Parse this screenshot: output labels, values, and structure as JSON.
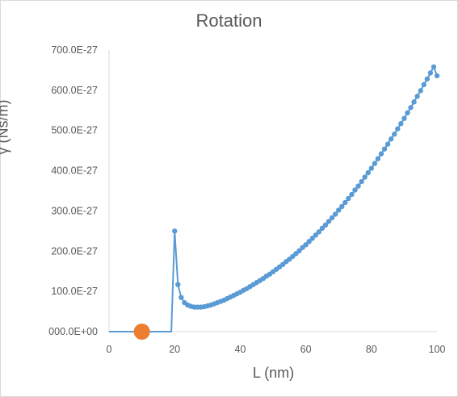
{
  "chart_data": {
    "type": "scatter",
    "title": "Rotation",
    "xlabel": "L (nm)",
    "ylabel": "γ (Ns/m)",
    "xlim": [
      0,
      100
    ],
    "ylim": [
      0,
      7e-25
    ],
    "x_ticks": [
      "0",
      "20",
      "40",
      "60",
      "80",
      "100"
    ],
    "y_ticks": [
      "000.0E+00",
      "100.0E-27",
      "200.0E-27",
      "300.0E-27",
      "400.0E-27",
      "500.0E-27",
      "600.0E-27",
      "700.0E-27"
    ],
    "grid": false,
    "legend": "none",
    "series": [
      {
        "color": "#5b9bd5",
        "marker": "circle",
        "line": true,
        "x": [
          0,
          1,
          2,
          3,
          4,
          5,
          6,
          7,
          8,
          9,
          10,
          11,
          12,
          13,
          14,
          15,
          16,
          17,
          18,
          19,
          20,
          21,
          22,
          23,
          24,
          25,
          26,
          27,
          28,
          29,
          30,
          31,
          32,
          33,
          34,
          35,
          36,
          37,
          38,
          39,
          40,
          41,
          42,
          43,
          44,
          45,
          46,
          47,
          48,
          49,
          50,
          51,
          52,
          53,
          54,
          55,
          56,
          57,
          58,
          59,
          60,
          61,
          62,
          63,
          64,
          65,
          66,
          67,
          68,
          69,
          70,
          71,
          72,
          73,
          74,
          75,
          76,
          77,
          78,
          79,
          80,
          81,
          82,
          83,
          84,
          85,
          86,
          87,
          88,
          89,
          90,
          91,
          92,
          93,
          94,
          95,
          96,
          97,
          98,
          99,
          100
        ],
        "y": [
          0,
          0,
          0,
          0,
          0,
          0,
          0,
          0,
          0,
          0,
          0,
          0,
          0,
          0,
          0,
          0,
          0,
          0,
          0,
          0,
          2.5e-25,
          1.17e-25,
          8.5e-26,
          7.2e-26,
          6.6e-26,
          6.3e-26,
          6.1e-26,
          6.1e-26,
          6.1e-26,
          6.2e-26,
          6.4e-26,
          6.6e-26,
          6.9e-26,
          7.2e-26,
          7.5e-26,
          7.8e-26,
          8.2e-26,
          8.6e-26,
          9e-26,
          9.4e-26,
          9.8e-26,
          1.03e-25,
          1.07e-25,
          1.12e-25,
          1.17e-25,
          1.22e-25,
          1.27e-25,
          1.32e-25,
          1.38e-25,
          1.43e-25,
          1.49e-25,
          1.55e-25,
          1.61e-25,
          1.67e-25,
          1.74e-25,
          1.8e-25,
          1.87e-25,
          1.94e-25,
          2.01e-25,
          2.09e-25,
          2.16e-25,
          2.24e-25,
          2.32e-25,
          2.4e-25,
          2.48e-25,
          2.57e-25,
          2.65e-25,
          2.74e-25,
          2.83e-25,
          2.92e-25,
          3.02e-25,
          3.11e-25,
          3.21e-25,
          3.31e-25,
          3.41e-25,
          3.52e-25,
          3.62e-25,
          3.73e-25,
          3.84e-25,
          3.95e-25,
          4.06e-25,
          4.18e-25,
          4.3e-25,
          4.42e-25,
          4.54e-25,
          4.66e-25,
          4.79e-25,
          4.91e-25,
          5.04e-25,
          5.17e-25,
          5.3e-25,
          5.44e-25,
          5.57e-25,
          5.71e-25,
          5.85e-25,
          5.99e-25,
          6.14e-25,
          6.28e-25,
          6.43e-25,
          6.58e-25,
          6.36e-25
        ],
        "markers_from_x": 20
      },
      {
        "color": "#ed7d31",
        "marker": "circle-large",
        "line": false,
        "x": [
          10
        ],
        "y": [
          0
        ]
      }
    ]
  }
}
